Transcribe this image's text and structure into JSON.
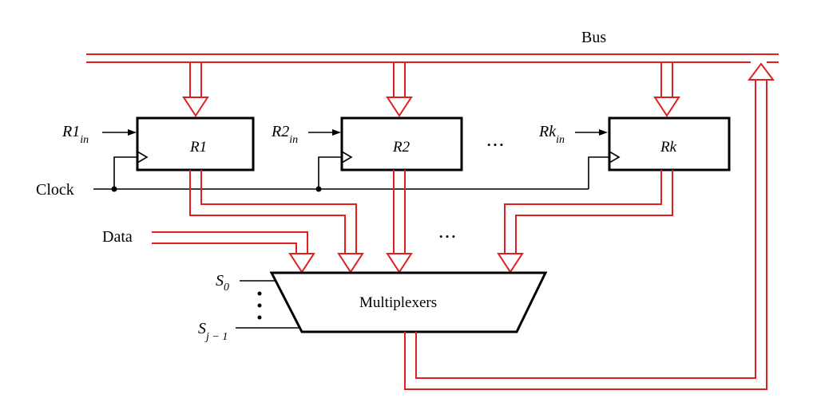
{
  "diagram": {
    "bus_label": "Bus",
    "clock_label": "Clock",
    "data_label": "Data",
    "mux_label": "Multiplexers",
    "ellipsis": "• • •",
    "registers": [
      {
        "name": "R1",
        "enable_base": "R1",
        "enable_sub": "in"
      },
      {
        "name": "R2",
        "enable_base": "R2",
        "enable_sub": "in"
      },
      {
        "name": "Rk",
        "enable_base": "Rk",
        "enable_sub": "in"
      }
    ],
    "select_first": {
      "base": "S",
      "sub": "0"
    },
    "select_last": {
      "base": "S",
      "sub": "j − 1"
    }
  }
}
